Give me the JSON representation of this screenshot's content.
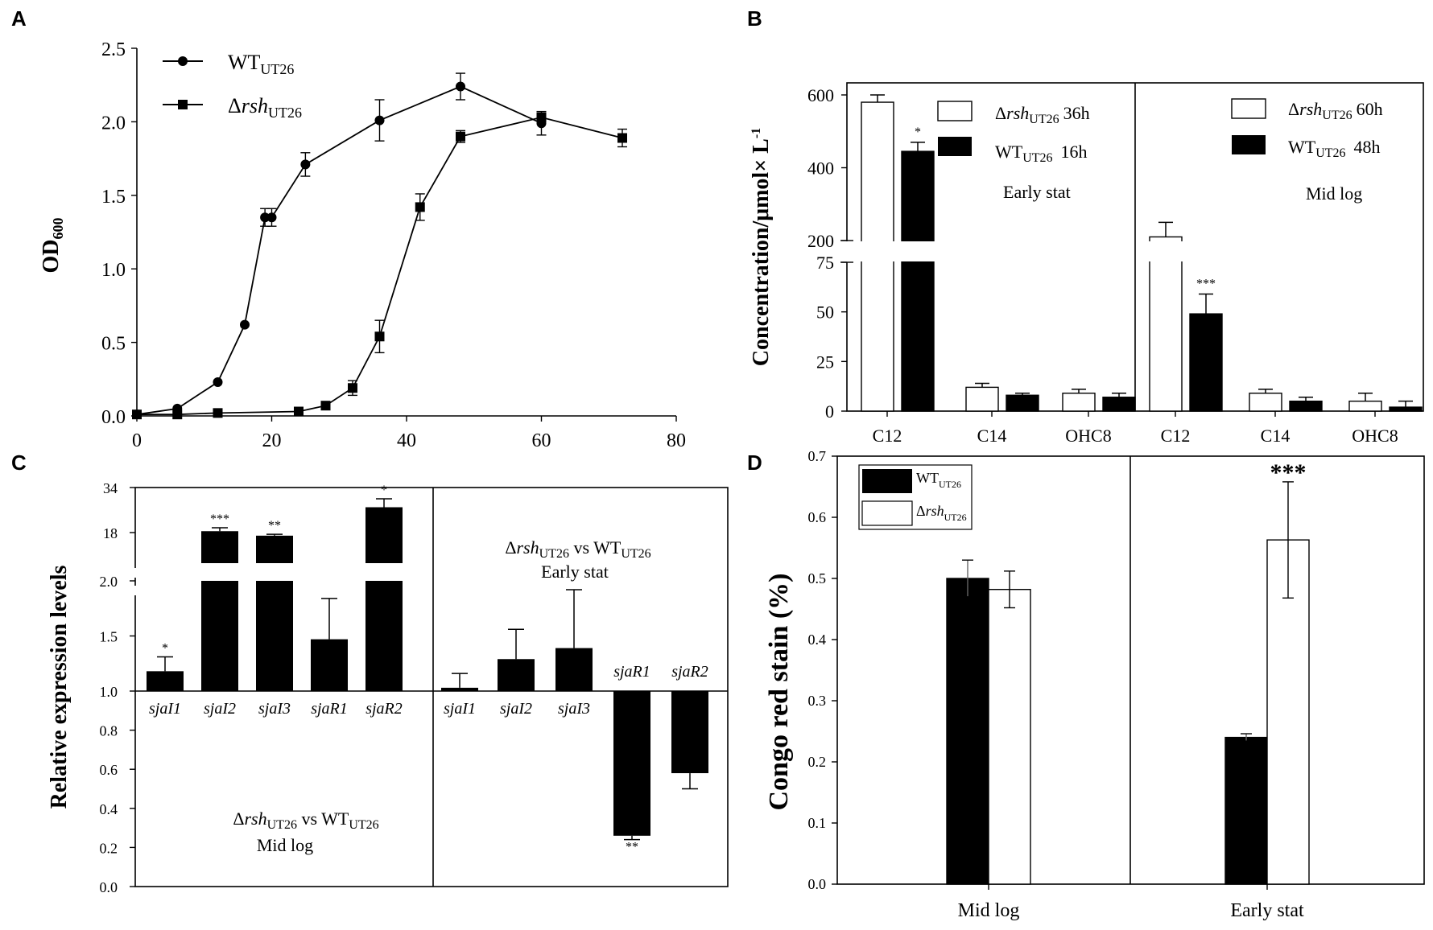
{
  "panels": {
    "A": "A",
    "B": "B",
    "C": "C",
    "D": "D"
  },
  "panelA": {
    "ylabel_main": "OD",
    "ylabel_sub": "600",
    "xticks": [
      "0",
      "20",
      "40",
      "60",
      "80"
    ],
    "yticks": [
      "0.0",
      "0.5",
      "1.0",
      "1.5",
      "2.0",
      "2.5"
    ],
    "legend": {
      "wt_main": "WT",
      "wt_sub": "UT26",
      "mut_delta": "Δ",
      "mut_main": "rsh",
      "mut_sub": "UT26"
    }
  },
  "panelB": {
    "ylabel_main": "Concentration/μmol× L",
    "ylabel_sup": "-1",
    "yticks": [
      "0",
      "25",
      "50",
      "75",
      "200",
      "400",
      "600"
    ],
    "left": {
      "categories": [
        "C12",
        "C14",
        "OHC8"
      ],
      "legend_open_main": "rsh",
      "legend_open_time": "36h",
      "legend_solid_main": "WT",
      "legend_solid_time": "16h",
      "phase": "Early stat",
      "stars": [
        "*",
        "",
        ""
      ]
    },
    "right": {
      "categories": [
        "C12",
        "C14",
        "OHC8"
      ],
      "legend_open_main": "rsh",
      "legend_open_time": "60h",
      "legend_solid_main": "WT",
      "legend_solid_time": "48h",
      "phase": "Mid log",
      "stars": [
        "***",
        "",
        ""
      ]
    },
    "delta": "Δ",
    "sub": "UT26"
  },
  "panelC": {
    "ylabel": "Relative expression levels",
    "yticks": [
      "0.0",
      "0.2",
      "0.4",
      "0.6",
      "0.8",
      "1.0",
      "1.5",
      "2.0",
      "18",
      "34"
    ],
    "left": {
      "genes": [
        "sjaI1",
        "sjaI2",
        "sjaI3",
        "sjaR1",
        "sjaR2"
      ],
      "stars": [
        "*",
        "***",
        "**",
        "",
        "*"
      ],
      "line1_delta": "Δ",
      "line1_main": "rsh",
      "line1_sub": "UT26",
      "line1_vs": " vs WT",
      "line1_sub2": "UT26",
      "line2": "Mid log"
    },
    "right": {
      "genes": [
        "sjaI1",
        "sjaI2",
        "sjaI3",
        "sjaR1",
        "sjaR2"
      ],
      "stars": [
        "",
        "",
        "",
        "**",
        ""
      ],
      "line1_delta": "Δ",
      "line1_main": "rsh",
      "line1_sub": "UT26",
      "line1_vs": " vs WT",
      "line1_sub2": "UT26",
      "line2": "Early stat"
    }
  },
  "panelD": {
    "ylabel": "Congo red stain  (%)",
    "yticks": [
      "0.0",
      "0.1",
      "0.2",
      "0.3",
      "0.4",
      "0.5",
      "0.6",
      "0.7"
    ],
    "categories": [
      "Mid log",
      "Early stat"
    ],
    "legend": {
      "wt_main": "WT",
      "wt_sub": "UT26",
      "mut_delta": "Δ",
      "mut_main": "rsh",
      "mut_sub": "UT26"
    },
    "stars": [
      "",
      "***"
    ]
  },
  "chart_data": [
    {
      "panel": "A",
      "type": "line",
      "title": "",
      "xlabel": "",
      "ylabel": "OD600",
      "xlim": [
        0,
        80
      ],
      "ylim": [
        0,
        2.5
      ],
      "series": [
        {
          "name": "WT_UT26",
          "marker": "circle",
          "x": [
            0,
            6,
            12,
            16,
            19,
            20,
            25,
            36,
            48,
            60
          ],
          "y": [
            0.01,
            0.05,
            0.23,
            0.62,
            1.35,
            1.35,
            1.71,
            2.01,
            2.24,
            1.99
          ],
          "err": [
            0.02,
            0.02,
            0.02,
            0.02,
            0.06,
            0.06,
            0.08,
            0.14,
            0.09,
            0.08
          ]
        },
        {
          "name": "Δrsh_UT26",
          "marker": "square",
          "x": [
            0,
            6,
            12,
            24,
            28,
            32,
            36,
            42,
            48,
            60,
            72
          ],
          "y": [
            0.01,
            0.01,
            0.02,
            0.03,
            0.07,
            0.19,
            0.54,
            1.42,
            1.9,
            2.03,
            1.89
          ],
          "err": [
            0.02,
            0.02,
            0.02,
            0.02,
            0.02,
            0.05,
            0.11,
            0.09,
            0.04,
            0.03,
            0.06
          ]
        }
      ]
    },
    {
      "panel": "B",
      "type": "bar",
      "ylabel": "Concentration/μmol× L-1",
      "ylim": [
        0,
        600
      ],
      "axis_break": [
        75,
        200
      ],
      "groups": [
        {
          "phase": "Early stat",
          "categories": [
            "C12",
            "C14",
            "OHC8"
          ],
          "series": [
            {
              "name": "Δrsh_UT26 36h",
              "fill": "open",
              "values": [
                580,
                12,
                9
              ],
              "err": [
                20,
                2,
                2
              ]
            },
            {
              "name": "WT_UT26 16h",
              "fill": "solid",
              "values": [
                445,
                8,
                7
              ],
              "err": [
                25,
                1,
                2
              ]
            }
          ]
        },
        {
          "phase": "Mid log",
          "categories": [
            "C12",
            "C14",
            "OHC8"
          ],
          "series": [
            {
              "name": "Δrsh_UT26 60h",
              "fill": "open",
              "values": [
                210,
                9,
                5
              ],
              "err": [
                40,
                2,
                4
              ]
            },
            {
              "name": "WT_UT26 48h",
              "fill": "solid",
              "values": [
                49,
                5,
                2
              ],
              "err": [
                10,
                2,
                3
              ]
            }
          ]
        }
      ]
    },
    {
      "panel": "C",
      "type": "bar",
      "ylabel": "Relative expression levels",
      "baseline": 1.0,
      "ylim": [
        0,
        34
      ],
      "axis_breaks": [
        [
          2.0,
          18
        ]
      ],
      "groups": [
        {
          "label": "Δrsh_UT26 vs WT_UT26 Mid log",
          "categories": [
            "sjaI1",
            "sjaI2",
            "sjaI3",
            "sjaR1",
            "sjaR2"
          ],
          "values": [
            1.18,
            18.5,
            16.9,
            1.47,
            27.0
          ],
          "err": [
            0.13,
            1.2,
            0.5,
            0.37,
            3.0
          ]
        },
        {
          "label": "Δrsh_UT26 vs WT_UT26 Early stat",
          "categories": [
            "sjaI1",
            "sjaI2",
            "sjaI3",
            "sjaR1",
            "sjaR2"
          ],
          "values": [
            1.03,
            1.29,
            1.39,
            0.26,
            0.58
          ],
          "err": [
            0.13,
            0.27,
            0.53,
            0.02,
            0.08
          ]
        }
      ]
    },
    {
      "panel": "D",
      "type": "bar",
      "ylabel": "Congo red stain (%)",
      "ylim": [
        0,
        0.7
      ],
      "categories": [
        "Mid log",
        "Early stat"
      ],
      "series": [
        {
          "name": "WT_UT26",
          "fill": "solid",
          "values": [
            0.5,
            0.24
          ],
          "err": [
            0.03,
            0.006
          ]
        },
        {
          "name": "Δrsh_UT26",
          "fill": "open",
          "values": [
            0.482,
            0.563
          ],
          "err": [
            0.03,
            0.095
          ]
        }
      ]
    }
  ]
}
